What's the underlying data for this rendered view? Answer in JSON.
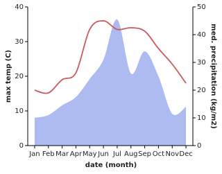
{
  "chart_data": {
    "type": "line",
    "x_label": "date (month)",
    "y_label": "max temp (C)",
    "y2_label": "med. precipitation (kg/m2)",
    "categories": [
      "Jan",
      "Feb",
      "Mar",
      "Apr",
      "May",
      "Jun",
      "Jul",
      "Aug",
      "Sep",
      "Oct",
      "Nov",
      "Dec"
    ],
    "series": [
      {
        "name": "max temp",
        "color": "#c95a5d",
        "values": [
          16,
          15.2,
          19,
          21,
          33.5,
          36,
          33.5,
          34,
          33,
          28,
          23.5,
          18
        ]
      },
      {
        "name": "med. precipitation",
        "color": "#aebbf1",
        "axis": "y2",
        "kind": "area",
        "values": [
          10,
          11,
          14.5,
          17.5,
          24,
          31,
          45.5,
          26,
          34,
          25,
          11.5,
          14
        ]
      }
    ],
    "ylim": [
      0,
      40
    ],
    "yticks": [
      0,
      10,
      20,
      30,
      40
    ],
    "y2lim": [
      0,
      50
    ],
    "y2ticks": [
      0,
      10,
      20,
      30,
      40,
      50
    ]
  }
}
